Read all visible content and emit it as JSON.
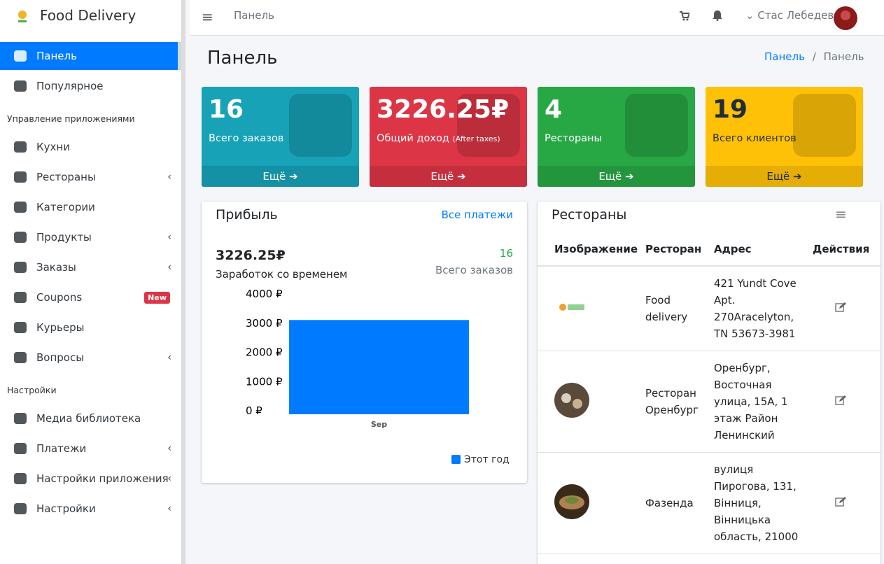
{
  "sidebar": {
    "brand": "Food Delivery",
    "groups": [
      {
        "items": [
          {
            "label": "Панель",
            "active": true
          },
          {
            "label": "Популярное"
          }
        ]
      },
      {
        "heading": "Управление приложениями",
        "items": [
          {
            "label": "Кухни"
          },
          {
            "label": "Рестораны",
            "submenu": true
          },
          {
            "label": "Категории"
          },
          {
            "label": "Продукты",
            "submenu": true
          },
          {
            "label": "Заказы",
            "submenu": true
          },
          {
            "label": "Coupons",
            "badge": "New"
          },
          {
            "label": "Курьеры"
          },
          {
            "label": "Вопросы",
            "submenu": true
          }
        ]
      },
      {
        "heading": "Настройки",
        "items": [
          {
            "label": "Медиа библиотека"
          },
          {
            "label": "Платежи",
            "submenu": true
          },
          {
            "label": "Настройки приложения",
            "submenu": true
          },
          {
            "label": "Настройки",
            "submenu": true
          }
        ]
      }
    ]
  },
  "topbar": {
    "title": "Панель",
    "user": "Стас Лебедев"
  },
  "header": {
    "title": "Панель",
    "breadcrumb": [
      "Панель",
      "Панель"
    ]
  },
  "stats": [
    {
      "value": "16",
      "label": "Всего заказов",
      "more": "Ещё",
      "color": "#17a2b8"
    },
    {
      "value": "3226.25₽",
      "label": "Общий доход",
      "note": "(After taxes)",
      "more": "Ещё",
      "color": "#dc3545"
    },
    {
      "value": "4",
      "label": "Рестораны",
      "more": "Ещё",
      "color": "#28a745"
    },
    {
      "value": "19",
      "label": "Всего клиентов",
      "more": "Ещё",
      "color": "#ffc107"
    }
  ],
  "profit": {
    "title": "Прибыль",
    "link": "Все платежи",
    "amount": "3226.25₽",
    "amount_label": "Заработок со временем",
    "orders": "16",
    "orders_label": "Всего заказов"
  },
  "chart_data": {
    "type": "bar",
    "categories": [
      "Sep"
    ],
    "series": [
      {
        "name": "Этот год",
        "color": "#007bff",
        "values": [
          3226.25
        ]
      }
    ],
    "ylim": [
      0,
      4000
    ],
    "yticks": [
      {
        "value": 0,
        "label": "0 ₽"
      },
      {
        "value": 1000,
        "label": "1000 ₽"
      },
      {
        "value": 2000,
        "label": "2000 ₽"
      },
      {
        "value": 3000,
        "label": "3000 ₽"
      },
      {
        "value": 4000,
        "label": "4000 ₽"
      }
    ]
  },
  "restaurants": {
    "title": "Рестораны",
    "columns": [
      "Изображение",
      "Ресторан",
      "Адрес",
      "Действия"
    ],
    "rows": [
      {
        "name": "Food delivery",
        "address": "421 Yundt Cove Apt. 270Aracelyton, TN 53673-3981"
      },
      {
        "name": "Ресторан Оренбург",
        "address": "Оренбург, Восточная улица, 15А, 1 этаж Район Ленинский"
      },
      {
        "name": "Фазенда",
        "address": "вулиця Пирогова, 131, Вінниця, Вінницька область, 21000"
      }
    ]
  }
}
